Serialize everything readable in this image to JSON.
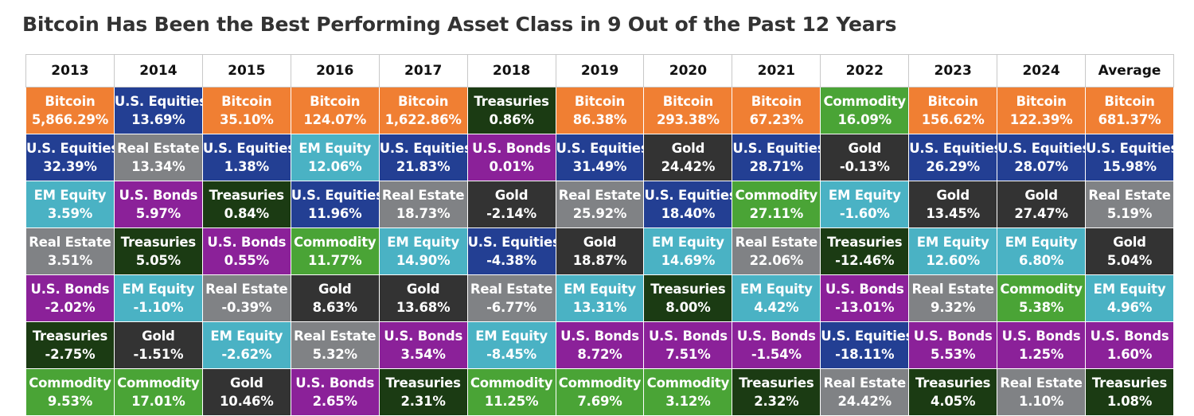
{
  "title": "Bitcoin Has Been the Best Performing Asset Class in 9 Out of the Past 12 Years",
  "chart_data": {
    "type": "table",
    "columns": [
      "2013",
      "2014",
      "2015",
      "2016",
      "2017",
      "2018",
      "2019",
      "2020",
      "2021",
      "2022",
      "2023",
      "2024",
      "Average"
    ],
    "colors": {
      "Bitcoin": "#F07F33",
      "U.S. Equities": "#233F93",
      "Treasuries": "#1B3B13",
      "Commodity": "#4AA436",
      "Gold": "#333333",
      "EM Equity": "#4AB2C4",
      "Real Estate": "#808285",
      "U.S. Bonds": "#8B2199"
    },
    "rows": [
      [
        [
          "Bitcoin",
          "5,866.29%"
        ],
        [
          "U.S. Equities",
          "13.69%"
        ],
        [
          "Bitcoin",
          "35.10%"
        ],
        [
          "Bitcoin",
          "124.07%"
        ],
        [
          "Bitcoin",
          "1,622.86%"
        ],
        [
          "Treasuries",
          "0.86%"
        ],
        [
          "Bitcoin",
          "86.38%"
        ],
        [
          "Bitcoin",
          "293.38%"
        ],
        [
          "Bitcoin",
          "67.23%"
        ],
        [
          "Commodity",
          "16.09%"
        ],
        [
          "Bitcoin",
          "156.62%"
        ],
        [
          "Bitcoin",
          "122.39%"
        ],
        [
          "Bitcoin",
          "681.37%"
        ]
      ],
      [
        [
          "U.S. Equities",
          "32.39%"
        ],
        [
          "Real Estate",
          "13.34%"
        ],
        [
          "U.S. Equities",
          "1.38%"
        ],
        [
          "EM Equity",
          "12.06%"
        ],
        [
          "U.S. Equities",
          "21.83%"
        ],
        [
          "U.S. Bonds",
          "0.01%"
        ],
        [
          "U.S. Equities",
          "31.49%"
        ],
        [
          "Gold",
          "24.42%"
        ],
        [
          "U.S. Equities",
          "28.71%"
        ],
        [
          "Gold",
          "-0.13%"
        ],
        [
          "U.S. Equities",
          "26.29%"
        ],
        [
          "U.S. Equities",
          "28.07%"
        ],
        [
          "U.S. Equities",
          "15.98%"
        ]
      ],
      [
        [
          "EM Equity",
          "3.59%"
        ],
        [
          "U.S. Bonds",
          "5.97%"
        ],
        [
          "Treasuries",
          "0.84%"
        ],
        [
          "U.S. Equities",
          "11.96%"
        ],
        [
          "Real Estate",
          "18.73%"
        ],
        [
          "Gold",
          "-2.14%"
        ],
        [
          "Real Estate",
          "25.92%"
        ],
        [
          "U.S. Equities",
          "18.40%"
        ],
        [
          "Commodity",
          "27.11%"
        ],
        [
          "EM Equity",
          "-1.60%"
        ],
        [
          "Gold",
          "13.45%"
        ],
        [
          "Gold",
          "27.47%"
        ],
        [
          "Real Estate",
          "5.19%"
        ]
      ],
      [
        [
          "Real Estate",
          "3.51%"
        ],
        [
          "Treasuries",
          "5.05%"
        ],
        [
          "U.S. Bonds",
          "0.55%"
        ],
        [
          "Commodity",
          "11.77%"
        ],
        [
          "EM Equity",
          "14.90%"
        ],
        [
          "U.S. Equities",
          "-4.38%"
        ],
        [
          "Gold",
          "18.87%"
        ],
        [
          "EM Equity",
          "14.69%"
        ],
        [
          "Real Estate",
          "22.06%"
        ],
        [
          "Treasuries",
          "-12.46%"
        ],
        [
          "EM Equity",
          "12.60%"
        ],
        [
          "EM Equity",
          "6.80%"
        ],
        [
          "Gold",
          "5.04%"
        ]
      ],
      [
        [
          "U.S. Bonds",
          "-2.02%"
        ],
        [
          "EM Equity",
          "-1.10%"
        ],
        [
          "Real Estate",
          "-0.39%"
        ],
        [
          "Gold",
          "8.63%"
        ],
        [
          "Gold",
          "13.68%"
        ],
        [
          "Real Estate",
          "-6.77%"
        ],
        [
          "EM Equity",
          "13.31%"
        ],
        [
          "Treasuries",
          "8.00%"
        ],
        [
          "EM Equity",
          "4.42%"
        ],
        [
          "U.S. Bonds",
          "-13.01%"
        ],
        [
          "Real Estate",
          "9.32%"
        ],
        [
          "Commodity",
          "5.38%"
        ],
        [
          "EM Equity",
          "4.96%"
        ]
      ],
      [
        [
          "Treasuries",
          "-2.75%"
        ],
        [
          "Gold",
          "-1.51%"
        ],
        [
          "EM Equity",
          "-2.62%"
        ],
        [
          "Real Estate",
          "5.32%"
        ],
        [
          "U.S. Bonds",
          "3.54%"
        ],
        [
          "EM Equity",
          "-8.45%"
        ],
        [
          "U.S. Bonds",
          "8.72%"
        ],
        [
          "U.S. Bonds",
          "7.51%"
        ],
        [
          "U.S. Bonds",
          "-1.54%"
        ],
        [
          "U.S. Equities",
          "-18.11%"
        ],
        [
          "U.S. Bonds",
          "5.53%"
        ],
        [
          "U.S. Bonds",
          "1.25%"
        ],
        [
          "U.S. Bonds",
          "1.60%"
        ]
      ],
      [
        [
          "Commodity",
          "9.53%"
        ],
        [
          "Commodity",
          "17.01%"
        ],
        [
          "Gold",
          "10.46%"
        ],
        [
          "U.S. Bonds",
          "2.65%"
        ],
        [
          "Treasuries",
          "2.31%"
        ],
        [
          "Commodity",
          "11.25%"
        ],
        [
          "Commodity",
          "7.69%"
        ],
        [
          "Commodity",
          "3.12%"
        ],
        [
          "Treasuries",
          "2.32%"
        ],
        [
          "Real Estate",
          "24.42%"
        ],
        [
          "Treasuries",
          "4.05%"
        ],
        [
          "Real Estate",
          "1.10%"
        ],
        [
          "Treasuries",
          "1.08%"
        ]
      ]
    ]
  }
}
